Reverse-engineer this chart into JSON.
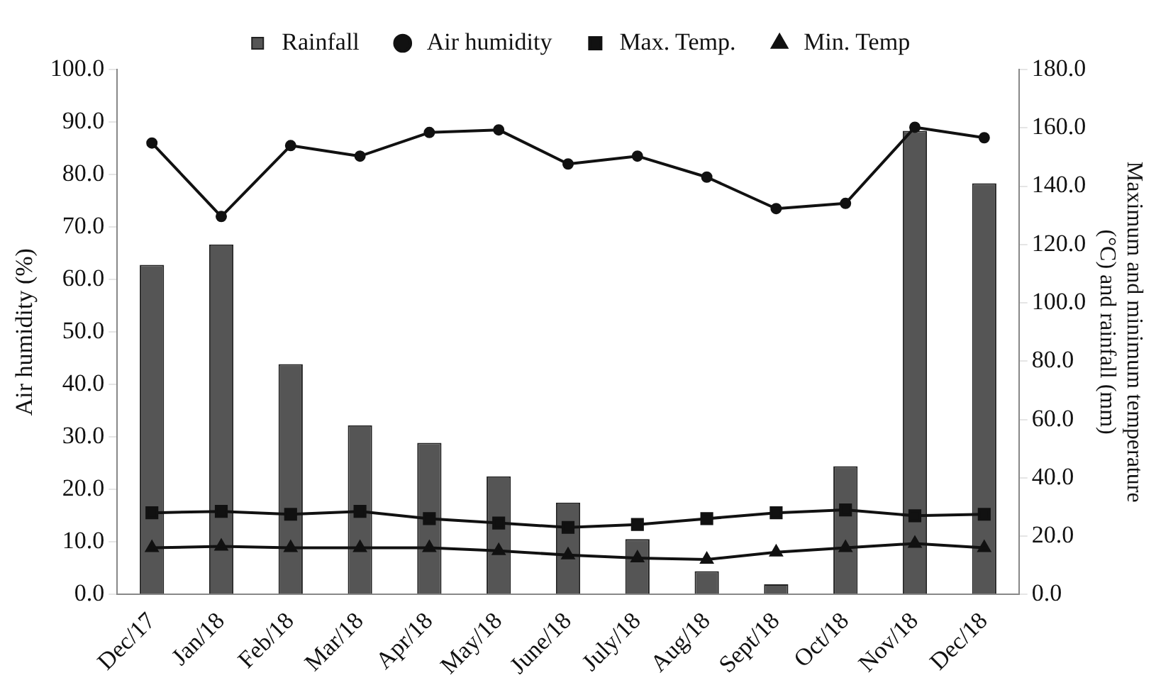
{
  "chart_data": {
    "type": "bar",
    "ylabel": "Air humidity (%)",
    "y2label": "Maximum and minimum temperature\n(°C) and rainfall (mm)",
    "legend": "top",
    "grid": false,
    "categories": [
      "Dec/17",
      "Jan/18",
      "Feb/18",
      "Mar/18",
      "Apr/18",
      "May/18",
      "June/18",
      "July/18",
      "Aug/18",
      "Sept/18",
      "Oct/18",
      "Nov/18",
      "Dec/18"
    ],
    "series": [
      {
        "name": "Rainfall",
        "axis": "y2",
        "color": "#555555",
        "values": [
          113,
          120,
          79,
          58,
          52,
          40.5,
          31.5,
          19,
          8,
          3.5,
          44,
          159,
          141
        ]
      },
      {
        "name": "Air humidity",
        "type": "line",
        "marker": "circle",
        "color": "#111111",
        "values": [
          86,
          72,
          85.5,
          83.5,
          88,
          88.5,
          82,
          83.5,
          79.5,
          73.5,
          74.5,
          89,
          87
        ]
      },
      {
        "name": "Max. Temp.",
        "type": "line",
        "marker": "square",
        "axis": "y2",
        "color": "#111111",
        "values": [
          28,
          28.5,
          27.5,
          28.5,
          26,
          24.5,
          23,
          24,
          26,
          28,
          29,
          27,
          27.5
        ]
      },
      {
        "name": "Min. Temp",
        "type": "line",
        "marker": "triangle",
        "axis": "y2",
        "color": "#111111",
        "values": [
          16,
          16.5,
          16,
          16,
          16,
          15,
          13.5,
          12.5,
          12,
          14.5,
          16,
          17.5,
          16
        ]
      }
    ],
    "ylim": [
      0,
      100
    ],
    "yticks": [
      {
        "value": 0,
        "label": "0.0"
      },
      {
        "value": 10,
        "label": "10.0"
      },
      {
        "value": 20,
        "label": "20.0"
      },
      {
        "value": 30,
        "label": "30.0"
      },
      {
        "value": 40,
        "label": "40.0"
      },
      {
        "value": 50,
        "label": "50.0"
      },
      {
        "value": 60,
        "label": "60.0"
      },
      {
        "value": 70,
        "label": "70.0"
      },
      {
        "value": 80,
        "label": "80.0"
      },
      {
        "value": 90,
        "label": "90.0"
      },
      {
        "value": 100,
        "label": "100.0"
      }
    ],
    "y2lim": [
      0,
      180
    ],
    "y2ticks": [
      {
        "value": 0,
        "label": "0.0"
      },
      {
        "value": 20,
        "label": "20.0"
      },
      {
        "value": 40,
        "label": "40.0"
      },
      {
        "value": 60,
        "label": "60.0"
      },
      {
        "value": 80,
        "label": "80.0"
      },
      {
        "value": 100,
        "label": "100.0"
      },
      {
        "value": 120,
        "label": "120.0"
      },
      {
        "value": 140,
        "label": "140.0"
      },
      {
        "value": 160,
        "label": "160.0"
      },
      {
        "value": 180,
        "label": "180.0"
      }
    ]
  }
}
